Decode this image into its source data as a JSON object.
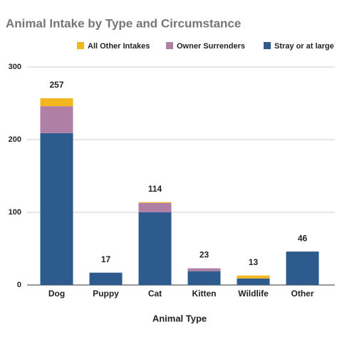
{
  "chart_data": {
    "type": "stacked_bar",
    "title": "Animal Intake by Type and Circumstance",
    "x_label": "Animal Type",
    "categories": [
      "Dog",
      "Puppy",
      "Cat",
      "Kitten",
      "Wildlife",
      "Other"
    ],
    "series": [
      {
        "name": "Stray or at large",
        "color": "#2d5b8e",
        "values": [
          209,
          17,
          100,
          19,
          9,
          46
        ]
      },
      {
        "name": "Owner Surrenders",
        "color": "#b07fa6",
        "values": [
          37,
          0,
          13,
          4,
          0,
          0
        ]
      },
      {
        "name": "All Other Intakes",
        "color": "#f2b71e",
        "values": [
          11,
          0,
          1,
          0,
          4,
          0
        ]
      }
    ],
    "totals": [
      257,
      17,
      114,
      23,
      13,
      46
    ],
    "ylim": [
      0,
      300
    ],
    "yticks": [
      0,
      100,
      200,
      300
    ],
    "grid": true,
    "legend": "top"
  }
}
